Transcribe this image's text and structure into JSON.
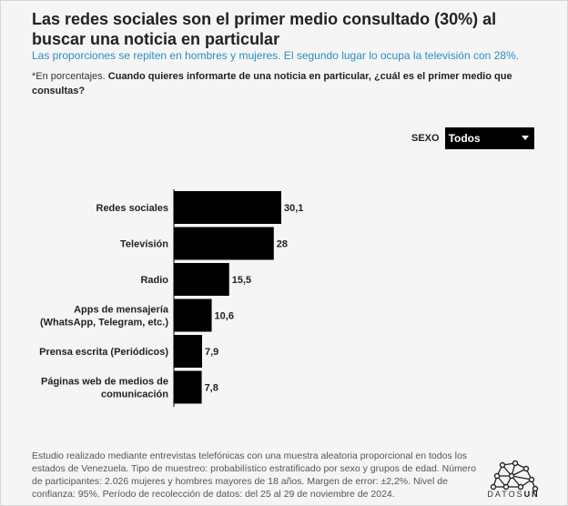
{
  "header": {
    "title": "Las redes sociales son el primer medio consultado (30%) al buscar una noticia en particular",
    "subtitle": "Las proporciones se repiten en hombres y mujeres. El segundo lugar lo ocupa la televisión con 28%.",
    "note_prefix": "*En porcentajes. ",
    "note_question": "Cuando quieres informarte de una noticia en particular, ¿cuál es el primer medio que consultas?"
  },
  "filter": {
    "label": "SEXO",
    "selected": "Todos"
  },
  "chart_data": {
    "type": "bar",
    "orientation": "horizontal",
    "categories": [
      [
        "Redes sociales"
      ],
      [
        "Televisión"
      ],
      [
        "Radio"
      ],
      [
        "Apps de mensajería",
        "(WhatsApp, Telegram, etc.)"
      ],
      [
        "Prensa escrita (Periódicos)"
      ],
      [
        "Páginas web de medios de",
        "comunicación"
      ]
    ],
    "values": [
      30.1,
      28,
      15.5,
      10.6,
      7.9,
      7.8
    ],
    "value_labels": [
      "30,1",
      "28",
      "15,5",
      "10,6",
      "7,9",
      "7,8"
    ],
    "bar_color": "#000000",
    "xlim": [
      0,
      30.1
    ]
  },
  "footer": {
    "text": "Estudio realizado mediante entrevistas telefónicas con una muestra aleatoria proporcional en todos los estados de Venezuela. Tipo de muestreo: probabilístico estratificado por sexo y grupos de edad. Número de participantes: 2.026 mujeres y hombres mayores de 18 años. Margen de error: ±2,2%. Nivel de confianza: 95%. Período de recolección de datos: del 25 al 29 de noviembre de 2024."
  },
  "logo": {
    "text_light": "DATOS",
    "text_bold": "UN",
    "icon": "network-icon"
  }
}
